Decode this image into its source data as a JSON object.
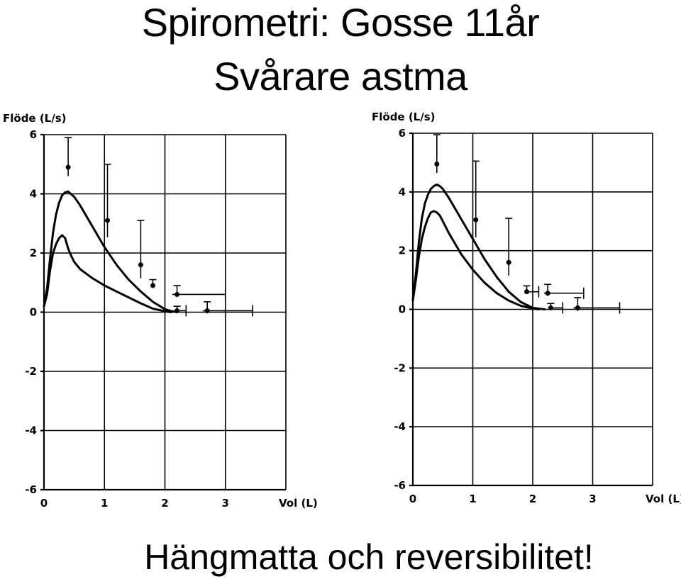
{
  "title_line1": "Spirometri: Gosse 11år",
  "title_line2": "Svårare astma",
  "caption": "Hängmatta och reversibilitet!",
  "chart_data": [
    {
      "type": "line",
      "ylabel": "Flöde (L/s)",
      "xlabel": "Vol (L)",
      "xlim": [
        0,
        4
      ],
      "ylim": [
        -6,
        6
      ],
      "x_ticks": [
        "0",
        "1",
        "2",
        "3"
      ],
      "y_ticks": [
        "6",
        "4",
        "2",
        "0",
        "-2",
        "-4",
        "-6"
      ],
      "grid": true,
      "series": [
        {
          "x": [
            0,
            0.05,
            0.1,
            0.15,
            0.2,
            0.25,
            0.3,
            0.35,
            0.4,
            0.5,
            0.6,
            0.8,
            1.0,
            1.2,
            1.4,
            1.6,
            1.8,
            2.0,
            2.1,
            2.2
          ],
          "y": [
            0.2,
            0.8,
            1.8,
            2.7,
            3.3,
            3.7,
            3.95,
            4.05,
            4.08,
            3.9,
            3.6,
            2.9,
            2.2,
            1.6,
            1.1,
            0.7,
            0.35,
            0.1,
            0.04,
            0.0
          ]
        },
        {
          "x": [
            0,
            0.05,
            0.1,
            0.15,
            0.2,
            0.25,
            0.3,
            0.35,
            0.4,
            0.45,
            0.5,
            0.6,
            0.8,
            1.0,
            1.2,
            1.4,
            1.6,
            1.8,
            2.0,
            2.1
          ],
          "y": [
            0.2,
            0.6,
            1.4,
            2.0,
            2.3,
            2.5,
            2.6,
            2.5,
            2.15,
            1.9,
            1.7,
            1.45,
            1.15,
            0.9,
            0.7,
            0.5,
            0.3,
            0.12,
            0.03,
            0.0
          ]
        }
      ],
      "reference_points": [
        {
          "x": 0.4,
          "y": 4.9,
          "x_err": 0,
          "y_err": 1.0
        },
        {
          "x": 1.05,
          "y": 3.1,
          "x_err": 0,
          "y_err": 1.9
        },
        {
          "x": 1.6,
          "y": 1.6,
          "x_err": 0,
          "y_err": 1.5
        },
        {
          "x": 1.8,
          "y": 0.9,
          "x_err": 0,
          "y_err": 0.2
        },
        {
          "x": 2.2,
          "y": 0.6,
          "x_err": 0.8,
          "y_err": 0.3
        },
        {
          "x": 2.2,
          "y": 0.05,
          "x_err": 0.15,
          "y_err": 0.15
        },
        {
          "x": 2.7,
          "y": 0.05,
          "x_err": 0.75,
          "y_err": 0.3
        }
      ]
    },
    {
      "type": "line",
      "ylabel": "Flöde (L/s)",
      "xlabel": "Vol (L)",
      "xlim": [
        0,
        4
      ],
      "ylim": [
        -6,
        6
      ],
      "x_ticks": [
        "0",
        "1",
        "2",
        "3"
      ],
      "y_ticks": [
        "6",
        "4",
        "2",
        "0",
        "-2",
        "-4",
        "-6"
      ],
      "grid": true,
      "series": [
        {
          "x": [
            0,
            0.05,
            0.1,
            0.15,
            0.2,
            0.25,
            0.3,
            0.35,
            0.4,
            0.45,
            0.5,
            0.6,
            0.8,
            1.0,
            1.2,
            1.4,
            1.6,
            1.8,
            2.0,
            2.2
          ],
          "y": [
            0.3,
            1.2,
            2.3,
            3.1,
            3.6,
            3.9,
            4.1,
            4.2,
            4.25,
            4.2,
            4.1,
            3.8,
            3.1,
            2.4,
            1.7,
            1.1,
            0.6,
            0.25,
            0.05,
            0.0
          ]
        },
        {
          "x": [
            0,
            0.05,
            0.1,
            0.15,
            0.2,
            0.25,
            0.3,
            0.35,
            0.4,
            0.45,
            0.5,
            0.6,
            0.8,
            1.0,
            1.2,
            1.4,
            1.6,
            1.8,
            2.0,
            2.1
          ],
          "y": [
            0.3,
            1.0,
            1.8,
            2.4,
            2.8,
            3.1,
            3.3,
            3.35,
            3.3,
            3.2,
            3.0,
            2.6,
            1.9,
            1.35,
            0.9,
            0.55,
            0.3,
            0.12,
            0.03,
            0.0
          ]
        }
      ],
      "reference_points": [
        {
          "x": 0.4,
          "y": 4.95,
          "x_err": 0,
          "y_err": 1.0
        },
        {
          "x": 1.05,
          "y": 3.05,
          "x_err": 0,
          "y_err": 2.0
        },
        {
          "x": 1.6,
          "y": 1.6,
          "x_err": 0,
          "y_err": 1.5
        },
        {
          "x": 1.9,
          "y": 0.6,
          "x_err": 0.2,
          "y_err": 0.2
        },
        {
          "x": 2.25,
          "y": 0.55,
          "x_err": 0.6,
          "y_err": 0.3
        },
        {
          "x": 2.3,
          "y": 0.05,
          "x_err": 0.2,
          "y_err": 0.15
        },
        {
          "x": 2.75,
          "y": 0.05,
          "x_err": 0.7,
          "y_err": 0.35
        }
      ]
    }
  ]
}
